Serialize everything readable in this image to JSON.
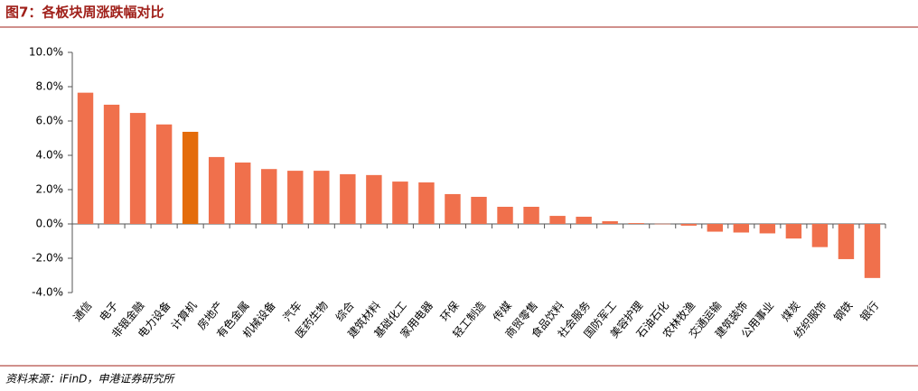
{
  "title": "图7：各板块周涨跌幅对比",
  "source": "资料来源：iFinD，申港证券研究所",
  "chart_data": {
    "type": "bar",
    "categories": [
      "通信",
      "电子",
      "非银金融",
      "电力设备",
      "计算机",
      "房地产",
      "有色金属",
      "机械设备",
      "汽车",
      "医药生物",
      "综合",
      "建筑材料",
      "基础化工",
      "家用电器",
      "环保",
      "轻工制造",
      "传媒",
      "商贸零售",
      "食品饮料",
      "社会服务",
      "国防军工",
      "美容护理",
      "石油石化",
      "农林牧渔",
      "交通运输",
      "建筑装饰",
      "公用事业",
      "煤炭",
      "纺织服饰",
      "钢铁",
      "银行"
    ],
    "values": [
      7.65,
      6.95,
      6.47,
      5.8,
      5.37,
      3.9,
      3.58,
      3.2,
      3.1,
      3.1,
      2.9,
      2.85,
      2.47,
      2.42,
      1.74,
      1.58,
      1.0,
      1.0,
      0.47,
      0.42,
      0.16,
      0.05,
      0.01,
      -0.1,
      -0.45,
      -0.5,
      -0.55,
      -0.85,
      -1.35,
      -2.05,
      -3.15
    ],
    "colors": [
      "#f0704c",
      "#f0704c",
      "#f0704c",
      "#f0704c",
      "#e46c0a",
      "#f0704c",
      "#f0704c",
      "#f0704c",
      "#f0704c",
      "#f0704c",
      "#f0704c",
      "#f0704c",
      "#f0704c",
      "#f0704c",
      "#f0704c",
      "#f0704c",
      "#f0704c",
      "#f0704c",
      "#f0704c",
      "#f0704c",
      "#f0704c",
      "#f0704c",
      "#f0704c",
      "#f0704c",
      "#f0704c",
      "#f0704c",
      "#f0704c",
      "#f0704c",
      "#f0704c",
      "#f0704c",
      "#f0704c"
    ],
    "ylim": [
      -4,
      10
    ],
    "yticks": [
      {
        "value": -4,
        "label": "-4.0%"
      },
      {
        "value": -2,
        "label": "-2.0%"
      },
      {
        "value": 0,
        "label": "0.0%"
      },
      {
        "value": 2,
        "label": "2.0%"
      },
      {
        "value": 4,
        "label": "4.0%"
      },
      {
        "value": 6,
        "label": "6.0%"
      },
      {
        "value": 8,
        "label": "8.0%"
      },
      {
        "value": 10,
        "label": "10.0%"
      }
    ]
  }
}
